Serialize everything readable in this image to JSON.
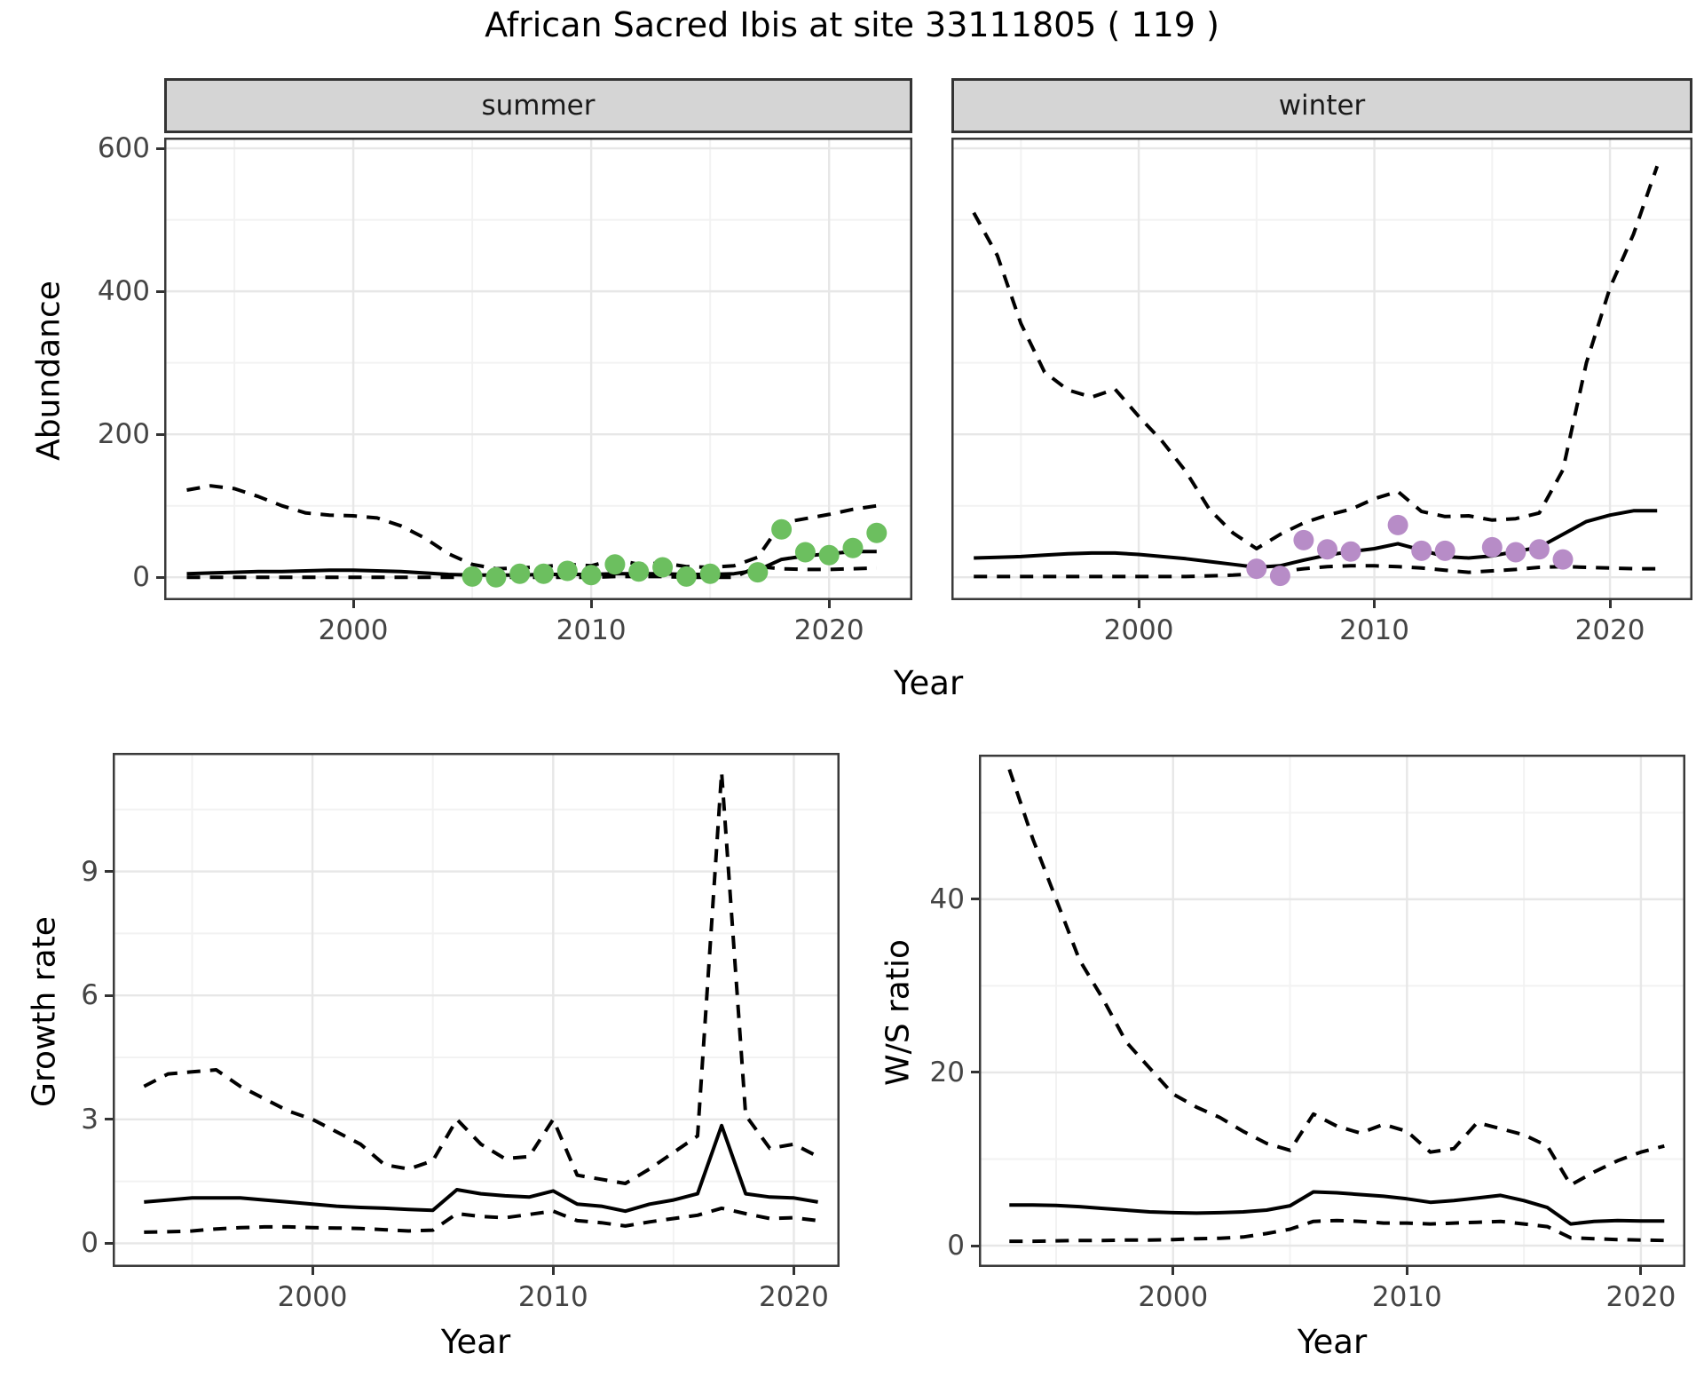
{
  "title": "African Sacred Ibis at site 33111805 ( 119 )",
  "colors": {
    "summer_points": "#6cbf5f",
    "winter_points": "#b78cc7",
    "line": "#000000",
    "strip_background": "#d5d5d5",
    "grid_major": "#e7e7e7",
    "grid_minor": "#f2f2f2",
    "panel_border": "#3a3a3a",
    "tick_label": "#444444"
  },
  "chart_data": [
    {
      "id": "abundance-summer",
      "type": "line",
      "facet": "summer",
      "xlabel": "Year",
      "ylabel": "Abundance",
      "ylim": [
        0,
        600
      ],
      "xlim": [
        1993,
        2022
      ],
      "xticks": [
        2000,
        2010,
        2020
      ],
      "xticks_minor": [
        1995,
        2005,
        2015
      ],
      "yticks": [
        0,
        200,
        400,
        600
      ],
      "yticks_minor": [
        100,
        300,
        500
      ],
      "show_ytick_labels": true,
      "x": [
        1993,
        1994,
        1995,
        1996,
        1997,
        1998,
        1999,
        2000,
        2001,
        2002,
        2003,
        2004,
        2005,
        2006,
        2007,
        2008,
        2009,
        2010,
        2011,
        2012,
        2013,
        2014,
        2015,
        2016,
        2017,
        2018,
        2019,
        2020,
        2021,
        2022
      ],
      "series": [
        {
          "name": "upper-95ci",
          "style": "dashed",
          "values": [
            122,
            128,
            124,
            113,
            100,
            90,
            87,
            86,
            83,
            72,
            55,
            33,
            18,
            12,
            13,
            15,
            18,
            16,
            25,
            18,
            20,
            15,
            14,
            16,
            28,
            76,
            82,
            88,
            95,
            100
          ]
        },
        {
          "name": "estimate",
          "style": "solid",
          "values": [
            5,
            6,
            7,
            8,
            8,
            9,
            10,
            10,
            9,
            8,
            6,
            4,
            3,
            3,
            3,
            4,
            4,
            4,
            5,
            5,
            5,
            4,
            4,
            5,
            10,
            25,
            30,
            33,
            36,
            36
          ]
        },
        {
          "name": "lower-95ci",
          "style": "dashed",
          "values": [
            0,
            0,
            0,
            0,
            0,
            0,
            0,
            0,
            0,
            0,
            0,
            0,
            0,
            0,
            0,
            0,
            0,
            0,
            1,
            1,
            1,
            0,
            0,
            0,
            15,
            12,
            11,
            11,
            12,
            13
          ]
        }
      ],
      "points": {
        "name": "observed-counts-summer",
        "color": "#6cbf5f",
        "xy": [
          [
            2005,
            1
          ],
          [
            2006,
            0
          ],
          [
            2007,
            5
          ],
          [
            2008,
            5
          ],
          [
            2009,
            9
          ],
          [
            2010,
            3
          ],
          [
            2011,
            18
          ],
          [
            2012,
            8
          ],
          [
            2013,
            14
          ],
          [
            2014,
            1
          ],
          [
            2015,
            5
          ],
          [
            2017,
            7
          ],
          [
            2018,
            67
          ],
          [
            2019,
            35
          ],
          [
            2020,
            31
          ],
          [
            2021,
            41
          ],
          [
            2022,
            62
          ]
        ]
      }
    },
    {
      "id": "abundance-winter",
      "type": "line",
      "facet": "winter",
      "xlabel": "Year",
      "ylabel": "Abundance",
      "ylim": [
        0,
        600
      ],
      "xlim": [
        1993,
        2022
      ],
      "xticks": [
        2000,
        2010,
        2020
      ],
      "xticks_minor": [
        1995,
        2005,
        2015
      ],
      "yticks": [
        0,
        200,
        400,
        600
      ],
      "yticks_minor": [
        100,
        300,
        500
      ],
      "show_ytick_labels": false,
      "x": [
        1993,
        1994,
        1995,
        1996,
        1997,
        1998,
        1999,
        2000,
        2001,
        2002,
        2003,
        2004,
        2005,
        2006,
        2007,
        2008,
        2009,
        2010,
        2011,
        2012,
        2013,
        2014,
        2015,
        2016,
        2017,
        2018,
        2019,
        2020,
        2021,
        2022
      ],
      "series": [
        {
          "name": "upper-95ci",
          "style": "dashed",
          "values": [
            510,
            450,
            355,
            287,
            262,
            252,
            263,
            225,
            190,
            148,
            95,
            62,
            40,
            60,
            76,
            87,
            95,
            110,
            120,
            92,
            85,
            86,
            80,
            82,
            90,
            150,
            300,
            405,
            480,
            575
          ]
        },
        {
          "name": "estimate",
          "style": "solid",
          "values": [
            27,
            28,
            29,
            31,
            33,
            34,
            34,
            32,
            29,
            26,
            22,
            18,
            14,
            16,
            24,
            31,
            36,
            40,
            47,
            38,
            29,
            27,
            30,
            36,
            42,
            60,
            78,
            87,
            93,
            93
          ]
        },
        {
          "name": "lower-95ci",
          "style": "dashed",
          "values": [
            1,
            1,
            1,
            1,
            1,
            1,
            1,
            1,
            1,
            1,
            2,
            3,
            5,
            8,
            12,
            15,
            16,
            16,
            15,
            13,
            10,
            7,
            9,
            11,
            14,
            15,
            14,
            13,
            12,
            12
          ]
        }
      ],
      "points": {
        "name": "observed-counts-winter",
        "color": "#b78cc7",
        "xy": [
          [
            2005,
            12
          ],
          [
            2006,
            2
          ],
          [
            2007,
            52
          ],
          [
            2008,
            39
          ],
          [
            2009,
            36
          ],
          [
            2011,
            73
          ],
          [
            2012,
            37
          ],
          [
            2013,
            37
          ],
          [
            2015,
            42
          ],
          [
            2016,
            35
          ],
          [
            2017,
            39
          ],
          [
            2018,
            25
          ]
        ]
      }
    },
    {
      "id": "growth-rate",
      "type": "line",
      "facet": "",
      "xlabel": "Year",
      "ylabel": "Growth rate",
      "ylim": [
        0,
        11.4
      ],
      "xlim": [
        1993,
        2021
      ],
      "xticks": [
        2000,
        2010,
        2020
      ],
      "xticks_minor": [
        1995,
        2005,
        2015
      ],
      "yticks": [
        0,
        3,
        6,
        9
      ],
      "yticks_minor": [
        1.5,
        4.5,
        7.5,
        10.5
      ],
      "show_ytick_labels": true,
      "x": [
        1993,
        1994,
        1995,
        1996,
        1997,
        1998,
        1999,
        2000,
        2001,
        2002,
        2003,
        2004,
        2005,
        2006,
        2007,
        2008,
        2009,
        2010,
        2011,
        2012,
        2013,
        2014,
        2015,
        2016,
        2017,
        2018,
        2019,
        2020,
        2021
      ],
      "series": [
        {
          "name": "upper-95ci",
          "style": "dashed",
          "values": [
            3.8,
            4.1,
            4.15,
            4.2,
            3.8,
            3.5,
            3.2,
            3.0,
            2.7,
            2.4,
            1.9,
            1.8,
            2.0,
            3.0,
            2.4,
            2.05,
            2.1,
            3.0,
            1.65,
            1.55,
            1.45,
            1.8,
            2.2,
            2.6,
            11.4,
            3.1,
            2.3,
            2.4,
            2.1
          ]
        },
        {
          "name": "estimate",
          "style": "solid",
          "values": [
            1.0,
            1.05,
            1.1,
            1.1,
            1.1,
            1.05,
            1.0,
            0.95,
            0.9,
            0.87,
            0.85,
            0.82,
            0.8,
            1.3,
            1.2,
            1.15,
            1.12,
            1.27,
            0.95,
            0.9,
            0.78,
            0.95,
            1.05,
            1.2,
            2.85,
            1.2,
            1.12,
            1.1,
            1.0
          ]
        },
        {
          "name": "lower-95ci",
          "style": "dashed",
          "values": [
            0.27,
            0.28,
            0.3,
            0.35,
            0.38,
            0.4,
            0.4,
            0.38,
            0.37,
            0.36,
            0.33,
            0.3,
            0.32,
            0.72,
            0.65,
            0.62,
            0.7,
            0.78,
            0.55,
            0.5,
            0.42,
            0.52,
            0.6,
            0.68,
            0.85,
            0.72,
            0.6,
            0.62,
            0.55
          ]
        }
      ],
      "points": null
    },
    {
      "id": "ws-ratio",
      "type": "line",
      "facet": "",
      "xlabel": "Year",
      "ylabel": "W/S ratio",
      "ylim": [
        0,
        55
      ],
      "xlim": [
        1993,
        2021
      ],
      "xticks": [
        2000,
        2010,
        2020
      ],
      "xticks_minor": [
        1995,
        2005,
        2015
      ],
      "yticks": [
        0,
        20,
        40
      ],
      "yticks_minor": [
        10,
        30,
        50
      ],
      "show_ytick_labels": true,
      "x": [
        1993,
        1994,
        1995,
        1996,
        1997,
        1998,
        1999,
        2000,
        2001,
        2002,
        2003,
        2004,
        2005,
        2006,
        2007,
        2008,
        2009,
        2010,
        2011,
        2012,
        2013,
        2014,
        2015,
        2016,
        2017,
        2018,
        2019,
        2020,
        2021
      ],
      "series": [
        {
          "name": "upper-95ci",
          "style": "dashed",
          "values": [
            55,
            47,
            40,
            33,
            28.5,
            23.5,
            20.5,
            17.5,
            16,
            14.8,
            13.2,
            11.8,
            11,
            15.2,
            13.8,
            13,
            14,
            13.2,
            10.8,
            11.2,
            14.2,
            13.5,
            12.8,
            11.5,
            7,
            8.5,
            9.8,
            10.8,
            11.5
          ]
        },
        {
          "name": "estimate",
          "style": "solid",
          "values": [
            4.7,
            4.7,
            4.65,
            4.5,
            4.3,
            4.1,
            3.9,
            3.8,
            3.75,
            3.8,
            3.9,
            4.1,
            4.6,
            6.2,
            6.1,
            5.9,
            5.7,
            5.4,
            5.0,
            5.2,
            5.5,
            5.8,
            5.2,
            4.4,
            2.5,
            2.8,
            2.9,
            2.85,
            2.85
          ]
        },
        {
          "name": "lower-95ci",
          "style": "dashed",
          "values": [
            0.5,
            0.5,
            0.55,
            0.6,
            0.6,
            0.65,
            0.65,
            0.7,
            0.8,
            0.85,
            1.0,
            1.4,
            1.9,
            2.8,
            2.9,
            2.8,
            2.6,
            2.6,
            2.5,
            2.6,
            2.7,
            2.8,
            2.5,
            2.2,
            0.9,
            0.8,
            0.7,
            0.65,
            0.6
          ]
        }
      ],
      "points": null
    }
  ]
}
